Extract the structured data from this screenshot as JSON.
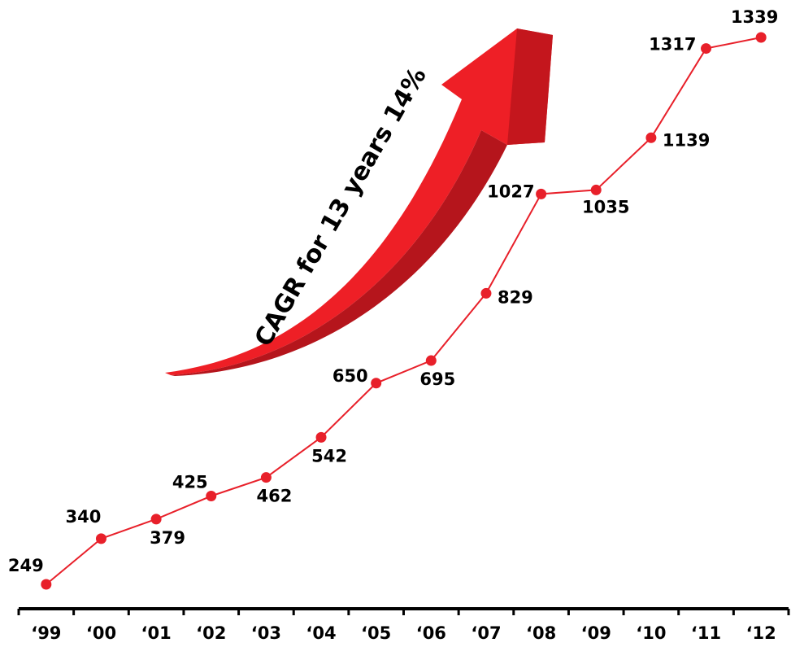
{
  "chart_data": {
    "type": "line",
    "annotation": "CAGR for 13 years 14%",
    "categories": [
      "‘99",
      "‘00",
      "‘01",
      "‘02",
      "‘03",
      "‘04",
      "‘05",
      "‘06",
      "‘07",
      "‘08",
      "‘09",
      "‘10",
      "‘11",
      "‘12"
    ],
    "values": [
      249,
      340,
      379,
      425,
      462,
      542,
      650,
      695,
      829,
      1027,
      1035,
      1139,
      1317,
      1339
    ],
    "color": "#e8202a"
  }
}
